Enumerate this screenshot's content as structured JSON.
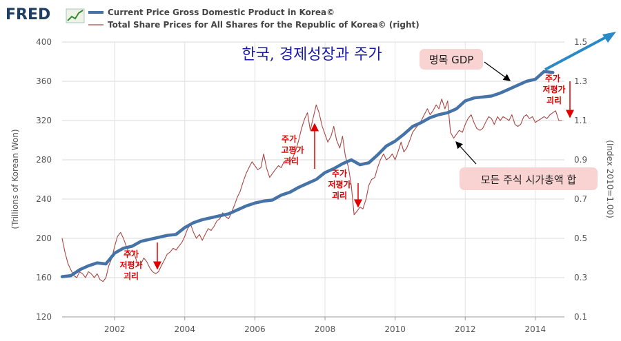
{
  "header": {
    "logo_text": "FRED",
    "legend": [
      {
        "name": "Current Price Gross Domestic Product in Korea©",
        "color": "#4572a7"
      },
      {
        "name": "Total Share Prices for All Shares for the Republic of Korea© (right)",
        "color": "#aa4643"
      }
    ]
  },
  "chart_data": {
    "type": "line",
    "title": "한국, 경제성장과 주가",
    "xlabel": "",
    "ylabel": "(Trillions of Korean Won)",
    "y2label": "(Index 2010=1.00)",
    "xlim": [
      2000.5,
      2014.83
    ],
    "ylim": [
      120,
      400
    ],
    "y2lim": [
      0.1,
      1.5
    ],
    "x_ticks": [
      "2002",
      "2004",
      "2006",
      "2008",
      "2010",
      "2012",
      "2014"
    ],
    "y_ticks": [
      "120",
      "160",
      "200",
      "240",
      "280",
      "320",
      "360",
      "400"
    ],
    "y2_ticks": [
      "0.1",
      "0.3",
      "0.5",
      "0.7",
      "0.9",
      "1.1",
      "1.3",
      "1.5"
    ],
    "grid": true,
    "series": [
      {
        "name": "Current Price Gross Domestic Product in Korea©",
        "axis": "left",
        "color": "#4572a7",
        "points": [
          [
            2000.5,
            161
          ],
          [
            2000.75,
            162
          ],
          [
            2001.0,
            168
          ],
          [
            2001.25,
            172
          ],
          [
            2001.5,
            175
          ],
          [
            2001.75,
            174
          ],
          [
            2002.0,
            185
          ],
          [
            2002.25,
            190
          ],
          [
            2002.5,
            192
          ],
          [
            2002.75,
            197
          ],
          [
            2003.0,
            199
          ],
          [
            2003.25,
            201
          ],
          [
            2003.5,
            203
          ],
          [
            2003.75,
            204
          ],
          [
            2004.0,
            211
          ],
          [
            2004.25,
            216
          ],
          [
            2004.5,
            219
          ],
          [
            2004.75,
            221
          ],
          [
            2005.0,
            223
          ],
          [
            2005.25,
            225
          ],
          [
            2005.5,
            229
          ],
          [
            2005.75,
            233
          ],
          [
            2006.0,
            236
          ],
          [
            2006.25,
            238
          ],
          [
            2006.5,
            239
          ],
          [
            2006.75,
            244
          ],
          [
            2007.0,
            247
          ],
          [
            2007.25,
            252
          ],
          [
            2007.5,
            256
          ],
          [
            2007.75,
            260
          ],
          [
            2008.0,
            267
          ],
          [
            2008.25,
            271
          ],
          [
            2008.5,
            276
          ],
          [
            2008.75,
            280
          ],
          [
            2009.0,
            275
          ],
          [
            2009.25,
            277
          ],
          [
            2009.5,
            285
          ],
          [
            2009.75,
            294
          ],
          [
            2010.0,
            299
          ],
          [
            2010.25,
            306
          ],
          [
            2010.5,
            314
          ],
          [
            2010.75,
            318
          ],
          [
            2011.0,
            323
          ],
          [
            2011.25,
            326
          ],
          [
            2011.5,
            328
          ],
          [
            2011.75,
            332
          ],
          [
            2012.0,
            340
          ],
          [
            2012.25,
            343
          ],
          [
            2012.5,
            344
          ],
          [
            2012.75,
            345
          ],
          [
            2013.0,
            348
          ],
          [
            2013.25,
            352
          ],
          [
            2013.5,
            356
          ],
          [
            2013.75,
            360
          ],
          [
            2014.0,
            362
          ],
          [
            2014.25,
            370
          ],
          [
            2014.5,
            369
          ]
        ]
      },
      {
        "name": "Total Share Prices for All Shares for the Republic of Korea© (right)",
        "axis": "right",
        "color": "#aa4643",
        "points": [
          [
            2000.5,
            0.5
          ],
          [
            2000.58,
            0.43
          ],
          [
            2000.67,
            0.37
          ],
          [
            2000.75,
            0.34
          ],
          [
            2000.83,
            0.31
          ],
          [
            2000.92,
            0.3
          ],
          [
            2001.0,
            0.33
          ],
          [
            2001.08,
            0.32
          ],
          [
            2001.17,
            0.3
          ],
          [
            2001.25,
            0.33
          ],
          [
            2001.33,
            0.32
          ],
          [
            2001.42,
            0.3
          ],
          [
            2001.5,
            0.32
          ],
          [
            2001.58,
            0.29
          ],
          [
            2001.67,
            0.28
          ],
          [
            2001.75,
            0.3
          ],
          [
            2001.83,
            0.36
          ],
          [
            2001.92,
            0.4
          ],
          [
            2002.0,
            0.46
          ],
          [
            2002.08,
            0.51
          ],
          [
            2002.17,
            0.53
          ],
          [
            2002.25,
            0.5
          ],
          [
            2002.33,
            0.46
          ],
          [
            2002.42,
            0.42
          ],
          [
            2002.5,
            0.44
          ],
          [
            2002.58,
            0.41
          ],
          [
            2002.67,
            0.36
          ],
          [
            2002.75,
            0.37
          ],
          [
            2002.83,
            0.4
          ],
          [
            2002.92,
            0.38
          ],
          [
            2003.0,
            0.35
          ],
          [
            2003.08,
            0.33
          ],
          [
            2003.17,
            0.32
          ],
          [
            2003.25,
            0.33
          ],
          [
            2003.33,
            0.36
          ],
          [
            2003.42,
            0.39
          ],
          [
            2003.5,
            0.42
          ],
          [
            2003.58,
            0.43
          ],
          [
            2003.67,
            0.45
          ],
          [
            2003.75,
            0.44
          ],
          [
            2003.83,
            0.46
          ],
          [
            2003.92,
            0.48
          ],
          [
            2004.0,
            0.51
          ],
          [
            2004.08,
            0.55
          ],
          [
            2004.17,
            0.57
          ],
          [
            2004.25,
            0.53
          ],
          [
            2004.33,
            0.5
          ],
          [
            2004.42,
            0.52
          ],
          [
            2004.5,
            0.49
          ],
          [
            2004.58,
            0.52
          ],
          [
            2004.67,
            0.55
          ],
          [
            2004.75,
            0.54
          ],
          [
            2004.83,
            0.56
          ],
          [
            2004.92,
            0.59
          ],
          [
            2005.0,
            0.6
          ],
          [
            2005.08,
            0.63
          ],
          [
            2005.17,
            0.61
          ],
          [
            2005.25,
            0.6
          ],
          [
            2005.33,
            0.63
          ],
          [
            2005.42,
            0.67
          ],
          [
            2005.5,
            0.71
          ],
          [
            2005.58,
            0.74
          ],
          [
            2005.67,
            0.79
          ],
          [
            2005.75,
            0.83
          ],
          [
            2005.83,
            0.86
          ],
          [
            2005.92,
            0.89
          ],
          [
            2006.0,
            0.87
          ],
          [
            2006.08,
            0.85
          ],
          [
            2006.17,
            0.86
          ],
          [
            2006.25,
            0.93
          ],
          [
            2006.33,
            0.86
          ],
          [
            2006.42,
            0.81
          ],
          [
            2006.5,
            0.83
          ],
          [
            2006.58,
            0.85
          ],
          [
            2006.67,
            0.87
          ],
          [
            2006.75,
            0.86
          ],
          [
            2006.83,
            0.89
          ],
          [
            2006.92,
            0.9
          ],
          [
            2007.0,
            0.89
          ],
          [
            2007.08,
            0.91
          ],
          [
            2007.17,
            0.95
          ],
          [
            2007.25,
            1.0
          ],
          [
            2007.33,
            1.06
          ],
          [
            2007.42,
            1.11
          ],
          [
            2007.5,
            1.14
          ],
          [
            2007.58,
            1.05
          ],
          [
            2007.67,
            1.12
          ],
          [
            2007.75,
            1.18
          ],
          [
            2007.83,
            1.14
          ],
          [
            2007.92,
            1.07
          ],
          [
            2008.0,
            1.03
          ],
          [
            2008.08,
            0.99
          ],
          [
            2008.17,
            1.02
          ],
          [
            2008.25,
            1.07
          ],
          [
            2008.33,
            1.0
          ],
          [
            2008.42,
            0.96
          ],
          [
            2008.5,
            1.02
          ],
          [
            2008.58,
            0.92
          ],
          [
            2008.67,
            0.86
          ],
          [
            2008.75,
            0.77
          ],
          [
            2008.83,
            0.62
          ],
          [
            2008.92,
            0.64
          ],
          [
            2009.0,
            0.66
          ],
          [
            2009.08,
            0.65
          ],
          [
            2009.17,
            0.7
          ],
          [
            2009.25,
            0.77
          ],
          [
            2009.33,
            0.8
          ],
          [
            2009.42,
            0.81
          ],
          [
            2009.5,
            0.86
          ],
          [
            2009.58,
            0.9
          ],
          [
            2009.67,
            0.93
          ],
          [
            2009.75,
            0.9
          ],
          [
            2009.83,
            0.91
          ],
          [
            2009.92,
            0.93
          ],
          [
            2010.0,
            0.9
          ],
          [
            2010.08,
            0.94
          ],
          [
            2010.17,
            0.99
          ],
          [
            2010.25,
            0.94
          ],
          [
            2010.33,
            0.96
          ],
          [
            2010.42,
            1.0
          ],
          [
            2010.5,
            1.04
          ],
          [
            2010.58,
            1.06
          ],
          [
            2010.67,
            1.08
          ],
          [
            2010.75,
            1.1
          ],
          [
            2010.83,
            1.13
          ],
          [
            2010.92,
            1.16
          ],
          [
            2011.0,
            1.13
          ],
          [
            2011.08,
            1.15
          ],
          [
            2011.17,
            1.18
          ],
          [
            2011.25,
            1.16
          ],
          [
            2011.33,
            1.21
          ],
          [
            2011.42,
            1.16
          ],
          [
            2011.5,
            1.2
          ],
          [
            2011.58,
            1.04
          ],
          [
            2011.67,
            1.01
          ],
          [
            2011.75,
            1.03
          ],
          [
            2011.83,
            1.05
          ],
          [
            2011.92,
            1.04
          ],
          [
            2012.0,
            1.08
          ],
          [
            2012.08,
            1.11
          ],
          [
            2012.17,
            1.13
          ],
          [
            2012.25,
            1.09
          ],
          [
            2012.33,
            1.06
          ],
          [
            2012.42,
            1.05
          ],
          [
            2012.5,
            1.06
          ],
          [
            2012.58,
            1.09
          ],
          [
            2012.67,
            1.12
          ],
          [
            2012.75,
            1.11
          ],
          [
            2012.83,
            1.08
          ],
          [
            2012.92,
            1.12
          ],
          [
            2013.0,
            1.1
          ],
          [
            2013.08,
            1.12
          ],
          [
            2013.17,
            1.11
          ],
          [
            2013.25,
            1.1
          ],
          [
            2013.33,
            1.13
          ],
          [
            2013.42,
            1.08
          ],
          [
            2013.5,
            1.07
          ],
          [
            2013.58,
            1.08
          ],
          [
            2013.67,
            1.12
          ],
          [
            2013.75,
            1.13
          ],
          [
            2013.83,
            1.11
          ],
          [
            2013.92,
            1.12
          ],
          [
            2014.0,
            1.09
          ],
          [
            2014.08,
            1.1
          ],
          [
            2014.17,
            1.11
          ],
          [
            2014.25,
            1.12
          ],
          [
            2014.33,
            1.11
          ],
          [
            2014.42,
            1.13
          ],
          [
            2014.5,
            1.14
          ],
          [
            2014.58,
            1.15
          ],
          [
            2014.67,
            1.1
          ],
          [
            2014.75,
            1.1
          ]
        ]
      }
    ],
    "annotations": [
      {
        "text": "명목 GDP",
        "kind": "box"
      },
      {
        "text": "모든 주식 시가총액 합",
        "kind": "box"
      },
      {
        "lines": [
          "주가",
          "저평가",
          "괴리"
        ],
        "kind": "red-note",
        "arrow": "down"
      },
      {
        "lines": [
          "주가",
          "고평가",
          "괴리"
        ],
        "kind": "red-note",
        "arrow": "up"
      },
      {
        "lines": [
          "주가",
          "저평가",
          "괴리"
        ],
        "kind": "red-note",
        "arrow": "down"
      },
      {
        "lines": [
          "주가",
          "저평가",
          "괴리"
        ],
        "kind": "red-note",
        "arrow": "down"
      }
    ]
  }
}
